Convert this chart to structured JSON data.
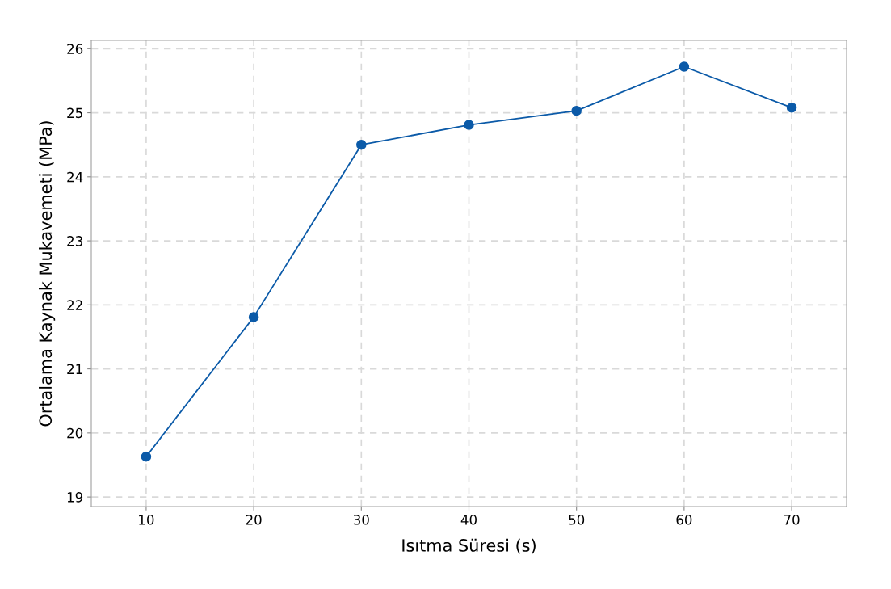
{
  "chart_data": {
    "type": "line",
    "xlabel": "Isıtma Süresi (s)",
    "ylabel": "Ortalama Kaynak Mukavemeti (MPa)",
    "x": [
      10,
      20,
      30,
      40,
      50,
      60,
      70
    ],
    "series": [
      {
        "color": "#0b5aa8",
        "values": [
          19.63,
          21.81,
          24.5,
          24.81,
          25.03,
          25.72,
          25.08
        ]
      }
    ],
    "xlim": [
      4.9,
      75.1
    ],
    "xticks": [
      10,
      20,
      30,
      40,
      50,
      60,
      70
    ],
    "ylim": [
      18.85,
      26.13
    ],
    "yticks": [
      19,
      20,
      21,
      22,
      23,
      24,
      25,
      26
    ],
    "grid": true,
    "marker": "circle",
    "line_style": "solid"
  }
}
